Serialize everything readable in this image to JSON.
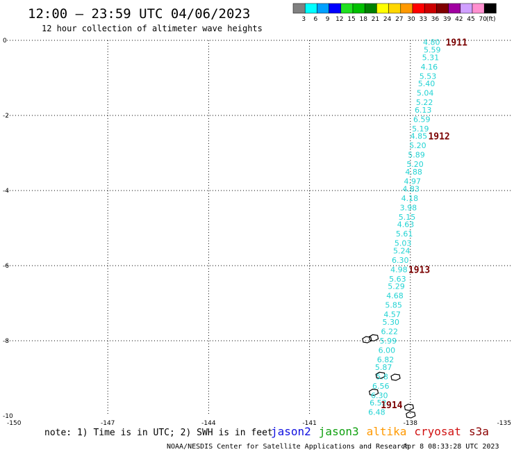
{
  "header": {
    "title": "12:00 — 23:59 UTC 04/06/2023",
    "subtitle": "12 hour collection of altimeter wave heights"
  },
  "legend": {
    "unit": "(ft)",
    "bins": [
      {
        "color": "#808080",
        "label": "3"
      },
      {
        "color": "#00ffff",
        "label": "6"
      },
      {
        "color": "#00a0ff",
        "label": "9"
      },
      {
        "color": "#0000ff",
        "label": "12"
      },
      {
        "color": "#20e020",
        "label": "15"
      },
      {
        "color": "#00c000",
        "label": "18"
      },
      {
        "color": "#008000",
        "label": "21"
      },
      {
        "color": "#ffff00",
        "label": "24"
      },
      {
        "color": "#ffd700",
        "label": "27"
      },
      {
        "color": "#ff9900",
        "label": "30"
      },
      {
        "color": "#ff0000",
        "label": "33"
      },
      {
        "color": "#cc0000",
        "label": "36"
      },
      {
        "color": "#800000",
        "label": "39"
      },
      {
        "color": "#a000a0",
        "label": "42"
      },
      {
        "color": "#d0a0ff",
        "label": "45"
      },
      {
        "color": "#ff90d0",
        "label": "70"
      },
      {
        "color": "#000000",
        "label": ""
      }
    ]
  },
  "map": {
    "lon_range": [
      -150,
      -135
    ],
    "lat_range": [
      -10,
      0
    ],
    "lon_ticks": [
      "-150",
      "-147",
      "-144",
      "-141",
      "-138",
      "-135"
    ],
    "lon_tick_values": [
      -150,
      -147,
      -144,
      -141,
      -138,
      -135
    ],
    "lat_ticks": [
      "0",
      "-2",
      "-4",
      "-6",
      "-8",
      "-10"
    ],
    "lat_tick_values": [
      0,
      -2,
      -4,
      -6,
      -8,
      -10
    ],
    "grid": "dotted",
    "track_color": "#22d3d3",
    "time_color": "#7a0000",
    "track": [
      {
        "lon": -137.37,
        "lat": -0.05,
        "v": "4.80"
      },
      {
        "lon": -137.35,
        "lat": -0.25,
        "v": "5.59"
      },
      {
        "lon": -137.4,
        "lat": -0.45,
        "v": "5.31"
      },
      {
        "lon": -137.44,
        "lat": -0.7,
        "v": "4.16"
      },
      {
        "lon": -137.48,
        "lat": -0.95,
        "v": "5.53"
      },
      {
        "lon": -137.52,
        "lat": -1.15,
        "v": "5.40"
      },
      {
        "lon": -137.56,
        "lat": -1.4,
        "v": "5.04"
      },
      {
        "lon": -137.58,
        "lat": -1.65,
        "v": "5.22"
      },
      {
        "lon": -137.62,
        "lat": -1.85,
        "v": "6.13"
      },
      {
        "lon": -137.66,
        "lat": -2.1,
        "v": "6.59"
      },
      {
        "lon": -137.7,
        "lat": -2.35,
        "v": "5.19"
      },
      {
        "lon": -137.75,
        "lat": -2.55,
        "v": "4.85"
      },
      {
        "lon": -137.78,
        "lat": -2.8,
        "v": "5.20"
      },
      {
        "lon": -137.82,
        "lat": -3.05,
        "v": "5.89"
      },
      {
        "lon": -137.86,
        "lat": -3.3,
        "v": "5.20"
      },
      {
        "lon": -137.9,
        "lat": -3.5,
        "v": "4.88"
      },
      {
        "lon": -137.94,
        "lat": -3.75,
        "v": "4.97"
      },
      {
        "lon": -137.98,
        "lat": -3.95,
        "v": "4.83"
      },
      {
        "lon": -138.02,
        "lat": -4.2,
        "v": "4.18"
      },
      {
        "lon": -138.06,
        "lat": -4.45,
        "v": "3.98"
      },
      {
        "lon": -138.1,
        "lat": -4.7,
        "v": "5.15"
      },
      {
        "lon": -138.14,
        "lat": -4.9,
        "v": "4.63"
      },
      {
        "lon": -138.18,
        "lat": -5.15,
        "v": "5.61"
      },
      {
        "lon": -138.22,
        "lat": -5.4,
        "v": "5.03"
      },
      {
        "lon": -138.26,
        "lat": -5.6,
        "v": "5.24"
      },
      {
        "lon": -138.3,
        "lat": -5.85,
        "v": "6.30"
      },
      {
        "lon": -138.34,
        "lat": -6.1,
        "v": "4.98"
      },
      {
        "lon": -138.38,
        "lat": -6.35,
        "v": "5.63"
      },
      {
        "lon": -138.42,
        "lat": -6.55,
        "v": "5.29"
      },
      {
        "lon": -138.46,
        "lat": -6.8,
        "v": "4.68"
      },
      {
        "lon": -138.5,
        "lat": -7.05,
        "v": "5.85"
      },
      {
        "lon": -138.54,
        "lat": -7.3,
        "v": "4.57"
      },
      {
        "lon": -138.58,
        "lat": -7.5,
        "v": "5.30"
      },
      {
        "lon": -138.62,
        "lat": -7.75,
        "v": "6.22"
      },
      {
        "lon": -138.66,
        "lat": -8.0,
        "v": "5.99"
      },
      {
        "lon": -138.7,
        "lat": -8.25,
        "v": "6.00"
      },
      {
        "lon": -138.74,
        "lat": -8.5,
        "v": "6.82"
      },
      {
        "lon": -138.8,
        "lat": -8.7,
        "v": "5.87"
      },
      {
        "lon": -138.84,
        "lat": -8.95,
        "v": "5.8"
      },
      {
        "lon": -138.88,
        "lat": -9.2,
        "v": "6.56"
      },
      {
        "lon": -138.92,
        "lat": -9.45,
        "v": "6.30"
      },
      {
        "lon": -138.96,
        "lat": -9.65,
        "v": "6.52"
      },
      {
        "lon": -139.0,
        "lat": -9.9,
        "v": "6.48"
      }
    ],
    "times": [
      {
        "lon": -136.95,
        "lat": -0.05,
        "label": "1911"
      },
      {
        "lon": -137.47,
        "lat": -2.55,
        "label": "1912"
      },
      {
        "lon": -138.06,
        "lat": -6.1,
        "label": "1913"
      },
      {
        "lon": -138.88,
        "lat": -9.7,
        "label": "1914"
      }
    ],
    "islands": [
      {
        "lon": -138.9,
        "lat": -8.95
      },
      {
        "lon": -138.45,
        "lat": -9.0
      },
      {
        "lon": -139.1,
        "lat": -9.4
      },
      {
        "lon": -138.05,
        "lat": -9.8
      },
      {
        "lon": -138.0,
        "lat": -10.0
      },
      {
        "lon": -139.1,
        "lat": -7.95
      },
      {
        "lon": -139.3,
        "lat": -8.0
      }
    ]
  },
  "footer": {
    "note": "note: 1) Time is in UTC; 2) SWH is in feet",
    "satellites": [
      {
        "name": "jason2",
        "color": "#1010e0"
      },
      {
        "name": "jason3",
        "color": "#10a010"
      },
      {
        "name": "altika",
        "color": "#ff9900"
      },
      {
        "name": "cryosat",
        "color": "#d01010"
      },
      {
        "name": "s3a",
        "color": "#8b0000"
      }
    ],
    "credit": "NOAA/NESDIS Center for Satellite Applications and Research",
    "timestamp": "Apr  8 08:33:28 UTC 2023"
  }
}
